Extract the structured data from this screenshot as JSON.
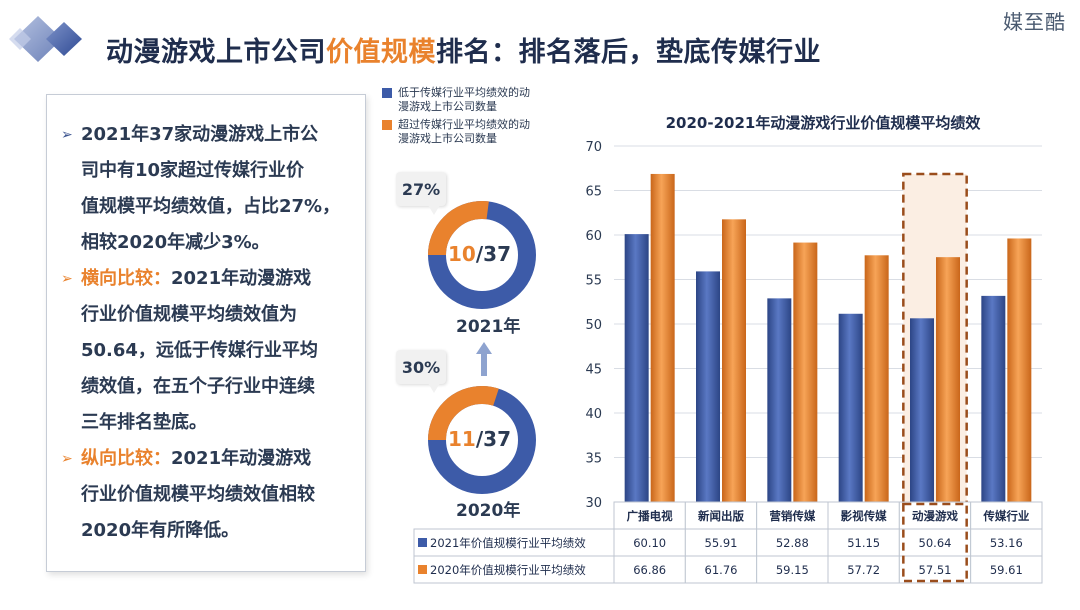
{
  "watermark": "媒至酷",
  "title": {
    "part1": "动漫游戏上市公司",
    "part2": "价值规模",
    "part3": "排名：排名落后，垫底传媒行业"
  },
  "left_panel": {
    "bullets": [
      {
        "lines": [
          "2021年37家动漫游戏上市公",
          "司中有10家超过传媒行业价",
          "值规模平均绩效值，占比27%，",
          "相较2020年减少3%。"
        ]
      },
      {
        "keyword": "横向比较：",
        "first": "2021年动漫游戏",
        "lines": [
          "行业价值规模平均绩效值为",
          "50.64，远低于传媒行业平均",
          "绩效值，在五个子行业中连续",
          "三年排名垫底。"
        ]
      },
      {
        "keyword": "纵向比较：",
        "first": "2021年动漫游戏",
        "lines": [
          "行业价值规模平均绩效值相较",
          "2020年有所降低。"
        ]
      }
    ]
  },
  "legend": {
    "items": [
      {
        "color": "#3d5ba8",
        "lines": [
          "低于传媒行业平均绩效的动",
          "漫游戏上市公司数量"
        ]
      },
      {
        "color": "#e9822d",
        "lines": [
          "超过传媒行业平均绩效的动",
          "漫游戏上市公司数量"
        ]
      }
    ]
  },
  "donuts": [
    {
      "year": "2021年",
      "pct": "27%",
      "above": "10",
      "total": "/37",
      "fraction": 0.27
    },
    {
      "year": "2020年",
      "pct": "30%",
      "above": "11",
      "total": "/37",
      "fraction": 0.3
    }
  ],
  "chart_data": {
    "type": "bar",
    "title": "2020-2021年动漫游戏行业价值规模平均绩效",
    "categories": [
      "广播电视",
      "新闻出版",
      "营销传媒",
      "影视传媒",
      "动漫游戏",
      "传媒行业"
    ],
    "series": [
      {
        "name": "2021年价值规模行业平均绩效",
        "color": "#3d5ba8",
        "values": [
          60.1,
          55.91,
          52.88,
          51.15,
          50.64,
          53.16
        ],
        "labels": [
          "60.10",
          "55.91",
          "52.88",
          "51.15",
          "50.64",
          "53.16"
        ]
      },
      {
        "name": "2020年价值规模行业平均绩效",
        "color": "#e9822d",
        "values": [
          66.86,
          61.76,
          59.15,
          57.72,
          57.51,
          59.61
        ],
        "labels": [
          "66.86",
          "61.76",
          "59.15",
          "57.72",
          "57.51",
          "59.61"
        ]
      }
    ],
    "ylim": [
      30,
      70
    ],
    "yticks": [
      30,
      35,
      40,
      45,
      50,
      55,
      60,
      65,
      70
    ],
    "grid": true,
    "highlight_category": "动漫游戏"
  }
}
